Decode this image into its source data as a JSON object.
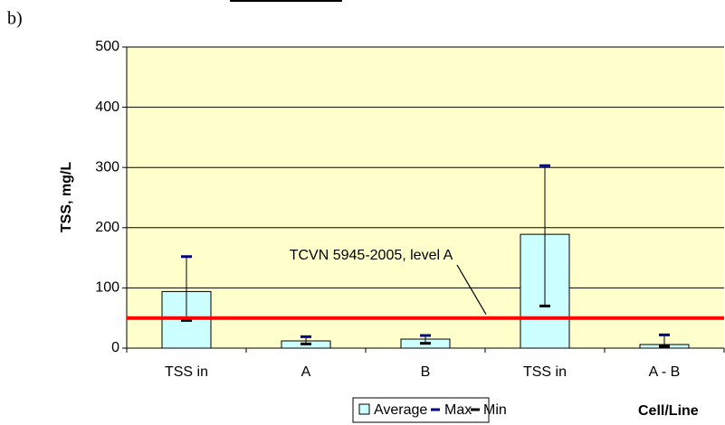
{
  "chart_data": {
    "type": "bar",
    "panel_label": "b)",
    "y_label": "TSS, mg/L",
    "x_label": "Cell/Line",
    "categories": [
      "TSS in",
      "A",
      "B",
      "TSS in",
      "A - B"
    ],
    "series": [
      {
        "name": "Average",
        "color": "#ccffff",
        "values": [
          94,
          12,
          15,
          189,
          6
        ]
      },
      {
        "name": "Max",
        "color": "#000080",
        "values": [
          152,
          19,
          21,
          303,
          22
        ]
      },
      {
        "name": "Min",
        "color": "#000000",
        "values": [
          46,
          7,
          8,
          70,
          3
        ]
      }
    ],
    "reference_line": {
      "value": 50,
      "label": "TCVN 5945-2005, level A",
      "color": "#ff0000"
    },
    "ylim": [
      0,
      500
    ],
    "yticks": [
      0,
      100,
      200,
      300,
      400,
      500
    ],
    "grid": true,
    "plot_background": "#ffffcc",
    "legend": "bottom"
  }
}
